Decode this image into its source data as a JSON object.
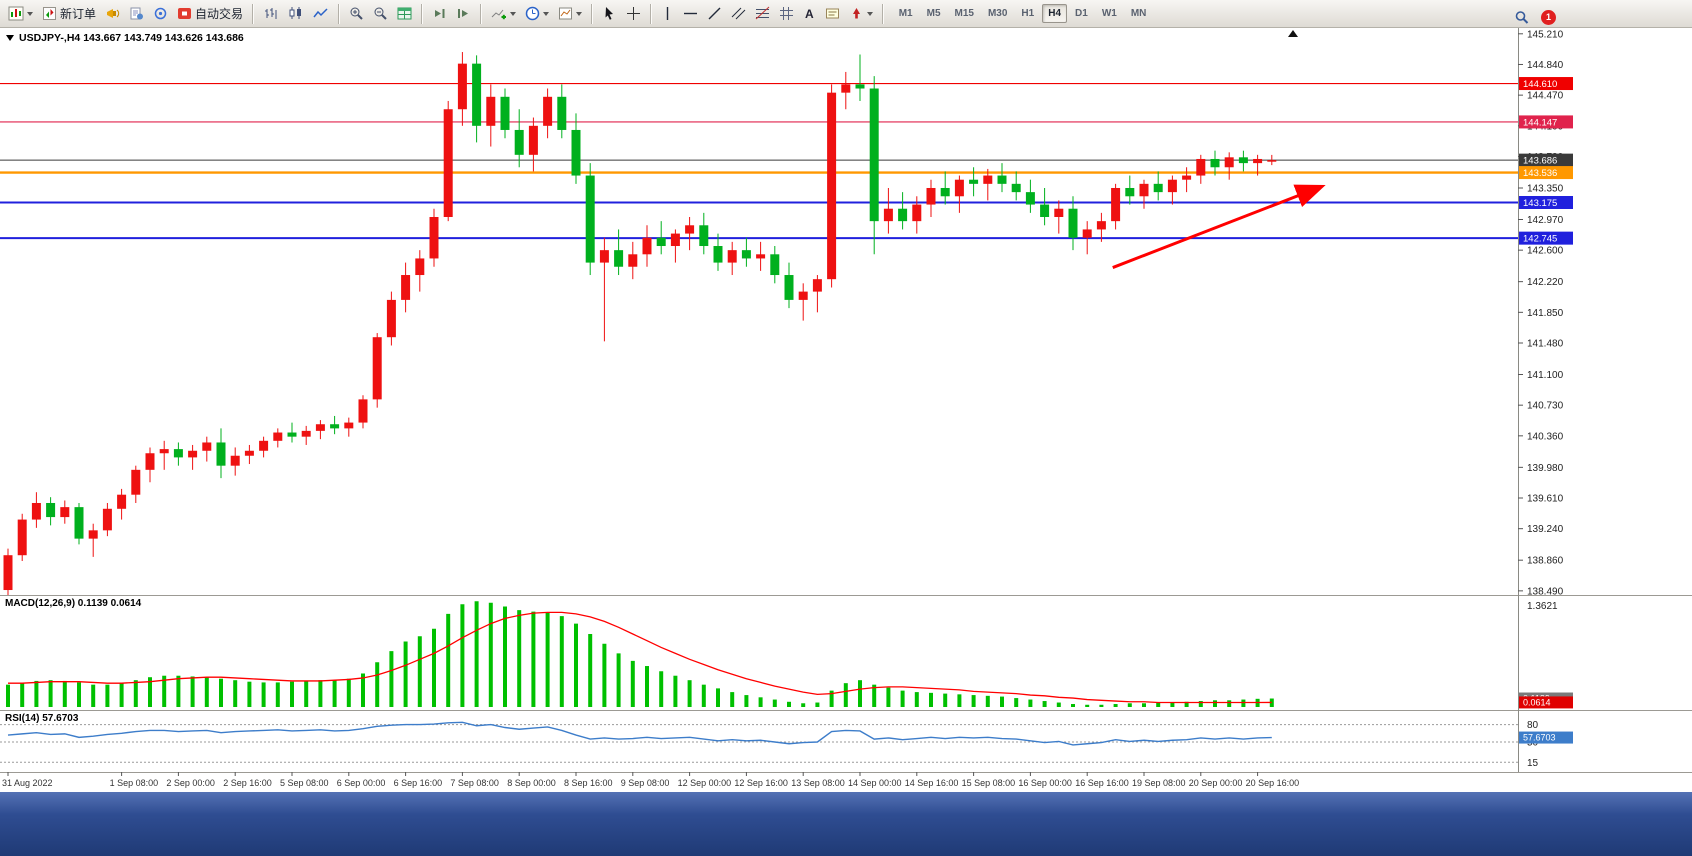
{
  "toolbar": {
    "new_order_label": "新订单",
    "auto_trading_label": "自动交易",
    "text_tool_label": "A",
    "timeframes": [
      "M1",
      "M5",
      "M15",
      "M30",
      "H1",
      "H4",
      "D1",
      "W1",
      "MN"
    ],
    "active_timeframe": "H4",
    "badge_count": "1"
  },
  "icons": {
    "chart-window-menu-icon": "mini-candles",
    "new-order-icon": "ticket-arrows",
    "megaphone-icon": "yellow-horn",
    "document-icon": "report-sheet",
    "expert-advisors-icon": "blue-ring-dot",
    "auto-trading-icon": "red-stop-square",
    "bar-chart-icon": "ohlc-bars",
    "candle-chart-icon": "candles",
    "line-chart-icon": "blue-polyline",
    "zoom-in-icon": "magnifier-plus",
    "zoom-out-icon": "magnifier-minus",
    "tile-windows-icon": "green-grid",
    "auto-scroll-icon": "play-to-line",
    "chart-shift-icon": "line-then-play",
    "indicators-icon": "chart-green-plus",
    "periods-icon": "blue-clock",
    "templates-icon": "chart-sheet",
    "cursor-icon": "pointer-arrow",
    "crosshair-icon": "crosshair",
    "vertical-line-icon": "vline",
    "horizontal-line-icon": "hline",
    "trendline-icon": "diagonal",
    "channel-icon": "parallel-diagonals",
    "fibonacci-icon": "fibo-lines",
    "gann-grid-icon": "grid-hash",
    "text-label-icon": "note-box",
    "arrows-tool-icon": "red-arrow",
    "search-icon": "magnifier",
    "notification-icon": "red-badge"
  },
  "chart_data": {
    "type": "candlestick",
    "symbol": "USDJPY-",
    "period": "H4",
    "title": "USDJPY-,H4 143.667 143.749 143.626 143.686",
    "ohlc": {
      "open": "143.667",
      "high": "143.749",
      "low": "143.626",
      "close": "143.686"
    },
    "colors": {
      "up": "#ee1111",
      "down": "#00b01e",
      "macd_hist": "#00c000",
      "macd_signal": "#ff0000",
      "rsi_line": "#3d7dca",
      "grid_level": "#9a9a9a",
      "current_price": "#3a3a3a"
    },
    "price_axis": {
      "max": 145.28,
      "min": 138.44,
      "ticks": [
        "145.210",
        "144.840",
        "144.470",
        "144.100",
        "143.730",
        "143.350",
        "142.970",
        "142.600",
        "142.220",
        "141.850",
        "141.480",
        "141.100",
        "140.730",
        "140.360",
        "139.980",
        "139.610",
        "139.240",
        "138.860",
        "138.490"
      ]
    },
    "hlines": [
      {
        "price": 144.61,
        "label": "144.610",
        "color": "#f00000",
        "width": 1.2
      },
      {
        "price": 144.147,
        "label": "144.147",
        "color": "#e0234c",
        "width": 1.2
      },
      {
        "price": 143.686,
        "label": "143.686",
        "color": "#3a3a3a",
        "width": 1
      },
      {
        "price": 143.536,
        "label": "143.536",
        "color": "#ff9800",
        "width": 2.4
      },
      {
        "price": 143.175,
        "label": "143.175",
        "color": "#2020dd",
        "width": 2
      },
      {
        "price": 142.745,
        "label": "142.745",
        "color": "#2020dd",
        "width": 2
      }
    ],
    "trend_arrow": {
      "from_index": 77.8,
      "from_price": 142.39,
      "to_index": 92.4,
      "to_price": 143.36,
      "color": "#ff0000"
    },
    "time_labels": [
      {
        "index": 0,
        "text": "31 Aug 2022"
      },
      {
        "index": 8,
        "text": "1 Sep 08:00"
      },
      {
        "index": 12,
        "text": "2 Sep 00:00"
      },
      {
        "index": 16,
        "text": "2 Sep 16:00"
      },
      {
        "index": 20,
        "text": "5 Sep 08:00"
      },
      {
        "index": 24,
        "text": "6 Sep 00:00"
      },
      {
        "index": 28,
        "text": "6 Sep 16:00"
      },
      {
        "index": 32,
        "text": "7 Sep 08:00"
      },
      {
        "index": 36,
        "text": "8 Sep 00:00"
      },
      {
        "index": 40,
        "text": "8 Sep 16:00"
      },
      {
        "index": 44,
        "text": "9 Sep 08:00"
      },
      {
        "index": 48,
        "text": "12 Sep 00:00"
      },
      {
        "index": 52,
        "text": "12 Sep 16:00"
      },
      {
        "index": 56,
        "text": "13 Sep 08:00"
      },
      {
        "index": 60,
        "text": "14 Sep 00:00"
      },
      {
        "index": 64,
        "text": "14 Sep 16:00"
      },
      {
        "index": 68,
        "text": "15 Sep 08:00"
      },
      {
        "index": 72,
        "text": "16 Sep 00:00"
      },
      {
        "index": 76,
        "text": "16 Sep 16:00"
      },
      {
        "index": 80,
        "text": "19 Sep 08:00"
      },
      {
        "index": 84,
        "text": "20 Sep 00:00"
      },
      {
        "index": 88,
        "text": "20 Sep 16:00"
      }
    ],
    "candles": [
      [
        138.5,
        139.0,
        138.44,
        138.92
      ],
      [
        138.92,
        139.42,
        138.85,
        139.35
      ],
      [
        139.35,
        139.68,
        139.25,
        139.55
      ],
      [
        139.55,
        139.62,
        139.28,
        139.38
      ],
      [
        139.38,
        139.58,
        139.3,
        139.5
      ],
      [
        139.5,
        139.55,
        139.05,
        139.12
      ],
      [
        139.12,
        139.3,
        138.9,
        139.22
      ],
      [
        139.22,
        139.55,
        139.15,
        139.48
      ],
      [
        139.48,
        139.72,
        139.35,
        139.65
      ],
      [
        139.65,
        140.0,
        139.55,
        139.95
      ],
      [
        139.95,
        140.22,
        139.8,
        140.15
      ],
      [
        140.15,
        140.3,
        139.95,
        140.2
      ],
      [
        140.2,
        140.28,
        140.0,
        140.1
      ],
      [
        140.1,
        140.25,
        139.95,
        140.18
      ],
      [
        140.18,
        140.35,
        140.05,
        140.28
      ],
      [
        140.28,
        140.45,
        139.85,
        140.0
      ],
      [
        140.0,
        140.22,
        139.88,
        140.12
      ],
      [
        140.12,
        140.25,
        140.02,
        140.18
      ],
      [
        140.18,
        140.35,
        140.1,
        140.3
      ],
      [
        140.3,
        140.45,
        140.22,
        140.4
      ],
      [
        140.4,
        140.52,
        140.28,
        140.35
      ],
      [
        140.35,
        140.48,
        140.25,
        140.42
      ],
      [
        140.42,
        140.55,
        140.32,
        140.5
      ],
      [
        140.5,
        140.6,
        140.38,
        140.45
      ],
      [
        140.45,
        140.58,
        140.35,
        140.52
      ],
      [
        140.52,
        140.85,
        140.45,
        140.8
      ],
      [
        140.8,
        141.6,
        140.7,
        141.55
      ],
      [
        141.55,
        142.1,
        141.45,
        142.0
      ],
      [
        142.0,
        142.45,
        141.85,
        142.3
      ],
      [
        142.3,
        142.6,
        142.1,
        142.5
      ],
      [
        142.5,
        143.1,
        142.4,
        143.0
      ],
      [
        143.0,
        144.4,
        142.95,
        144.3
      ],
      [
        144.3,
        144.99,
        144.1,
        144.85
      ],
      [
        144.85,
        144.95,
        143.9,
        144.1
      ],
      [
        144.1,
        144.6,
        143.85,
        144.45
      ],
      [
        144.45,
        144.55,
        143.95,
        144.05
      ],
      [
        144.05,
        144.3,
        143.6,
        143.75
      ],
      [
        143.75,
        144.2,
        143.55,
        144.1
      ],
      [
        144.1,
        144.55,
        143.95,
        144.45
      ],
      [
        144.45,
        144.6,
        143.95,
        144.05
      ],
      [
        144.05,
        144.25,
        143.4,
        143.5
      ],
      [
        143.5,
        143.65,
        142.3,
        142.45
      ],
      [
        142.45,
        142.75,
        141.5,
        142.6
      ],
      [
        142.6,
        142.85,
        142.3,
        142.4
      ],
      [
        142.4,
        142.7,
        142.25,
        142.55
      ],
      [
        142.55,
        142.9,
        142.4,
        142.75
      ],
      [
        142.75,
        142.95,
        142.55,
        142.65
      ],
      [
        142.65,
        142.85,
        142.45,
        142.8
      ],
      [
        142.8,
        143.0,
        142.6,
        142.9
      ],
      [
        142.9,
        143.05,
        142.55,
        142.65
      ],
      [
        142.65,
        142.8,
        142.35,
        142.45
      ],
      [
        142.45,
        142.7,
        142.3,
        142.6
      ],
      [
        142.6,
        142.75,
        142.4,
        142.5
      ],
      [
        142.5,
        142.7,
        142.35,
        142.55
      ],
      [
        142.55,
        142.65,
        142.2,
        142.3
      ],
      [
        142.3,
        142.45,
        141.9,
        142.0
      ],
      [
        142.0,
        142.2,
        141.75,
        142.1
      ],
      [
        142.1,
        142.3,
        141.85,
        142.25
      ],
      [
        142.25,
        144.6,
        142.15,
        144.5
      ],
      [
        144.5,
        144.75,
        144.3,
        144.6
      ],
      [
        144.6,
        144.96,
        144.4,
        144.55
      ],
      [
        144.55,
        144.7,
        142.55,
        142.95
      ],
      [
        142.95,
        143.35,
        142.8,
        143.1
      ],
      [
        143.1,
        143.3,
        142.85,
        142.95
      ],
      [
        142.95,
        143.25,
        142.8,
        143.15
      ],
      [
        143.15,
        143.45,
        143.0,
        143.35
      ],
      [
        143.35,
        143.55,
        143.15,
        143.25
      ],
      [
        143.25,
        143.5,
        143.05,
        143.45
      ],
      [
        143.45,
        143.6,
        143.25,
        143.4
      ],
      [
        143.4,
        143.58,
        143.2,
        143.5
      ],
      [
        143.5,
        143.65,
        143.3,
        143.4
      ],
      [
        143.4,
        143.55,
        143.2,
        143.3
      ],
      [
        143.3,
        143.45,
        143.05,
        143.15
      ],
      [
        143.15,
        143.35,
        142.9,
        143.0
      ],
      [
        143.0,
        143.2,
        142.8,
        143.1
      ],
      [
        143.1,
        143.25,
        142.6,
        142.75
      ],
      [
        142.75,
        142.95,
        142.55,
        142.85
      ],
      [
        142.85,
        143.05,
        142.7,
        142.95
      ],
      [
        142.95,
        143.4,
        142.85,
        143.35
      ],
      [
        143.35,
        143.5,
        143.15,
        143.25
      ],
      [
        143.25,
        143.45,
        143.1,
        143.4
      ],
      [
        143.4,
        143.55,
        143.2,
        143.3
      ],
      [
        143.3,
        143.5,
        143.15,
        143.45
      ],
      [
        143.45,
        143.6,
        143.3,
        143.5
      ],
      [
        143.5,
        143.75,
        143.4,
        143.7
      ],
      [
        143.7,
        143.8,
        143.5,
        143.6
      ],
      [
        143.6,
        143.78,
        143.45,
        143.72
      ],
      [
        143.72,
        143.8,
        143.55,
        143.65
      ],
      [
        143.65,
        143.75,
        143.5,
        143.7
      ],
      [
        143.667,
        143.749,
        143.626,
        143.686
      ]
    ],
    "macd": {
      "title": "MACD(12,26,9) 0.1139 0.0614",
      "params": "12,26,9",
      "value": 0.1139,
      "signal_value": 0.0614,
      "scale_max": 1.45,
      "ticks": [
        {
          "value": 1.3621,
          "label": "1.3621"
        },
        {
          "value": 0.0763,
          "label": "0.0763"
        }
      ],
      "boxes": [
        {
          "value": 0.1139,
          "label": "0.1139",
          "bg": "#7a7a7a"
        },
        {
          "value": 0.0614,
          "label": "0.0614",
          "bg": "#e00000"
        }
      ],
      "histogram": [
        0.3,
        0.32,
        0.35,
        0.36,
        0.35,
        0.33,
        0.3,
        0.3,
        0.32,
        0.36,
        0.4,
        0.42,
        0.42,
        0.41,
        0.4,
        0.38,
        0.36,
        0.34,
        0.33,
        0.33,
        0.34,
        0.35,
        0.36,
        0.36,
        0.38,
        0.45,
        0.6,
        0.75,
        0.88,
        0.95,
        1.05,
        1.25,
        1.38,
        1.42,
        1.4,
        1.35,
        1.3,
        1.28,
        1.27,
        1.22,
        1.12,
        0.98,
        0.85,
        0.72,
        0.62,
        0.55,
        0.48,
        0.42,
        0.36,
        0.3,
        0.25,
        0.2,
        0.16,
        0.13,
        0.1,
        0.07,
        0.05,
        0.06,
        0.22,
        0.32,
        0.36,
        0.3,
        0.26,
        0.22,
        0.2,
        0.19,
        0.18,
        0.17,
        0.16,
        0.15,
        0.14,
        0.12,
        0.1,
        0.08,
        0.06,
        0.04,
        0.03,
        0.03,
        0.04,
        0.05,
        0.05,
        0.06,
        0.06,
        0.07,
        0.08,
        0.09,
        0.09,
        0.1,
        0.11,
        0.1139
      ],
      "signal": [
        0.32,
        0.32,
        0.33,
        0.34,
        0.34,
        0.34,
        0.33,
        0.32,
        0.32,
        0.33,
        0.34,
        0.36,
        0.38,
        0.39,
        0.4,
        0.4,
        0.39,
        0.38,
        0.37,
        0.36,
        0.35,
        0.35,
        0.35,
        0.36,
        0.37,
        0.39,
        0.43,
        0.49,
        0.56,
        0.64,
        0.72,
        0.82,
        0.93,
        1.03,
        1.12,
        1.19,
        1.23,
        1.26,
        1.27,
        1.27,
        1.25,
        1.21,
        1.15,
        1.07,
        0.98,
        0.89,
        0.8,
        0.72,
        0.64,
        0.57,
        0.5,
        0.44,
        0.38,
        0.33,
        0.28,
        0.24,
        0.2,
        0.17,
        0.18,
        0.21,
        0.24,
        0.26,
        0.27,
        0.27,
        0.26,
        0.25,
        0.24,
        0.23,
        0.21,
        0.2,
        0.19,
        0.18,
        0.16,
        0.15,
        0.13,
        0.12,
        0.1,
        0.09,
        0.08,
        0.07,
        0.07,
        0.06,
        0.06,
        0.06,
        0.06,
        0.06,
        0.06,
        0.06,
        0.06,
        0.0614
      ]
    },
    "rsi": {
      "title": "RSI(14) 57.6703",
      "period": 14,
      "value": 57.6703,
      "value_box": {
        "value": 57.6703,
        "label": "57.6703",
        "bg": "#3d7dca"
      },
      "levels": [
        {
          "value": 80,
          "label": "80"
        },
        {
          "value": 50,
          "label": "50"
        },
        {
          "value": 15,
          "label": "15"
        }
      ],
      "values": [
        62,
        64,
        66,
        63,
        64,
        58,
        60,
        63,
        65,
        68,
        70,
        70,
        68,
        69,
        70,
        66,
        68,
        69,
        70,
        71,
        69,
        70,
        71,
        69,
        70,
        73,
        77,
        79,
        80,
        80,
        81,
        83,
        84,
        78,
        80,
        75,
        72,
        74,
        76,
        70,
        62,
        55,
        57,
        55,
        56,
        58,
        56,
        57,
        58,
        55,
        52,
        54,
        52,
        53,
        50,
        47,
        49,
        50,
        68,
        70,
        69,
        55,
        57,
        54,
        56,
        58,
        56,
        58,
        57,
        58,
        56,
        55,
        52,
        49,
        51,
        45,
        47,
        49,
        54,
        51,
        53,
        51,
        53,
        54,
        57,
        55,
        57,
        55,
        57,
        57.67
      ]
    }
  }
}
